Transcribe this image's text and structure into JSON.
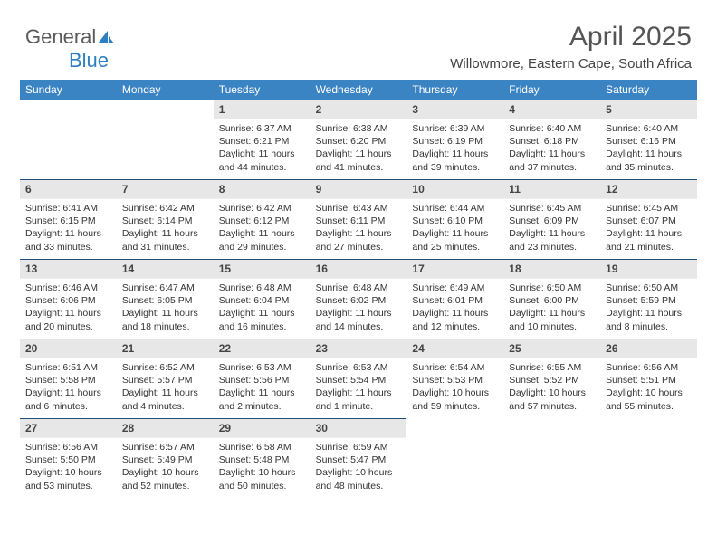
{
  "logo": {
    "text_gray": "General",
    "text_blue": "Blue"
  },
  "title": "April 2025",
  "location": "Willowmore, Eastern Cape, South Africa",
  "colors": {
    "header_bg": "#3b84c4",
    "header_text": "#ffffff",
    "daynum_bg": "#e7e7e7",
    "daynum_border_top": "#1f4e79",
    "body_text": "#333333",
    "title_text": "#555555",
    "logo_gray": "#5a5a5a",
    "logo_blue": "#2d7fc1",
    "background": "#ffffff"
  },
  "typography": {
    "title_fontsize": 30,
    "location_fontsize": 15,
    "dayhead_fontsize": 12,
    "daynum_fontsize": 12,
    "cell_fontsize": 10.5,
    "logo_fontsize": 22
  },
  "day_headers": [
    "Sunday",
    "Monday",
    "Tuesday",
    "Wednesday",
    "Thursday",
    "Friday",
    "Saturday"
  ],
  "weeks": [
    [
      {
        "empty": true
      },
      {
        "empty": true
      },
      {
        "day": "1",
        "sunrise": "Sunrise: 6:37 AM",
        "sunset": "Sunset: 6:21 PM",
        "daylight": "Daylight: 11 hours and 44 minutes."
      },
      {
        "day": "2",
        "sunrise": "Sunrise: 6:38 AM",
        "sunset": "Sunset: 6:20 PM",
        "daylight": "Daylight: 11 hours and 41 minutes."
      },
      {
        "day": "3",
        "sunrise": "Sunrise: 6:39 AM",
        "sunset": "Sunset: 6:19 PM",
        "daylight": "Daylight: 11 hours and 39 minutes."
      },
      {
        "day": "4",
        "sunrise": "Sunrise: 6:40 AM",
        "sunset": "Sunset: 6:18 PM",
        "daylight": "Daylight: 11 hours and 37 minutes."
      },
      {
        "day": "5",
        "sunrise": "Sunrise: 6:40 AM",
        "sunset": "Sunset: 6:16 PM",
        "daylight": "Daylight: 11 hours and 35 minutes."
      }
    ],
    [
      {
        "day": "6",
        "sunrise": "Sunrise: 6:41 AM",
        "sunset": "Sunset: 6:15 PM",
        "daylight": "Daylight: 11 hours and 33 minutes."
      },
      {
        "day": "7",
        "sunrise": "Sunrise: 6:42 AM",
        "sunset": "Sunset: 6:14 PM",
        "daylight": "Daylight: 11 hours and 31 minutes."
      },
      {
        "day": "8",
        "sunrise": "Sunrise: 6:42 AM",
        "sunset": "Sunset: 6:12 PM",
        "daylight": "Daylight: 11 hours and 29 minutes."
      },
      {
        "day": "9",
        "sunrise": "Sunrise: 6:43 AM",
        "sunset": "Sunset: 6:11 PM",
        "daylight": "Daylight: 11 hours and 27 minutes."
      },
      {
        "day": "10",
        "sunrise": "Sunrise: 6:44 AM",
        "sunset": "Sunset: 6:10 PM",
        "daylight": "Daylight: 11 hours and 25 minutes."
      },
      {
        "day": "11",
        "sunrise": "Sunrise: 6:45 AM",
        "sunset": "Sunset: 6:09 PM",
        "daylight": "Daylight: 11 hours and 23 minutes."
      },
      {
        "day": "12",
        "sunrise": "Sunrise: 6:45 AM",
        "sunset": "Sunset: 6:07 PM",
        "daylight": "Daylight: 11 hours and 21 minutes."
      }
    ],
    [
      {
        "day": "13",
        "sunrise": "Sunrise: 6:46 AM",
        "sunset": "Sunset: 6:06 PM",
        "daylight": "Daylight: 11 hours and 20 minutes."
      },
      {
        "day": "14",
        "sunrise": "Sunrise: 6:47 AM",
        "sunset": "Sunset: 6:05 PM",
        "daylight": "Daylight: 11 hours and 18 minutes."
      },
      {
        "day": "15",
        "sunrise": "Sunrise: 6:48 AM",
        "sunset": "Sunset: 6:04 PM",
        "daylight": "Daylight: 11 hours and 16 minutes."
      },
      {
        "day": "16",
        "sunrise": "Sunrise: 6:48 AM",
        "sunset": "Sunset: 6:02 PM",
        "daylight": "Daylight: 11 hours and 14 minutes."
      },
      {
        "day": "17",
        "sunrise": "Sunrise: 6:49 AM",
        "sunset": "Sunset: 6:01 PM",
        "daylight": "Daylight: 11 hours and 12 minutes."
      },
      {
        "day": "18",
        "sunrise": "Sunrise: 6:50 AM",
        "sunset": "Sunset: 6:00 PM",
        "daylight": "Daylight: 11 hours and 10 minutes."
      },
      {
        "day": "19",
        "sunrise": "Sunrise: 6:50 AM",
        "sunset": "Sunset: 5:59 PM",
        "daylight": "Daylight: 11 hours and 8 minutes."
      }
    ],
    [
      {
        "day": "20",
        "sunrise": "Sunrise: 6:51 AM",
        "sunset": "Sunset: 5:58 PM",
        "daylight": "Daylight: 11 hours and 6 minutes."
      },
      {
        "day": "21",
        "sunrise": "Sunrise: 6:52 AM",
        "sunset": "Sunset: 5:57 PM",
        "daylight": "Daylight: 11 hours and 4 minutes."
      },
      {
        "day": "22",
        "sunrise": "Sunrise: 6:53 AM",
        "sunset": "Sunset: 5:56 PM",
        "daylight": "Daylight: 11 hours and 2 minutes."
      },
      {
        "day": "23",
        "sunrise": "Sunrise: 6:53 AM",
        "sunset": "Sunset: 5:54 PM",
        "daylight": "Daylight: 11 hours and 1 minute."
      },
      {
        "day": "24",
        "sunrise": "Sunrise: 6:54 AM",
        "sunset": "Sunset: 5:53 PM",
        "daylight": "Daylight: 10 hours and 59 minutes."
      },
      {
        "day": "25",
        "sunrise": "Sunrise: 6:55 AM",
        "sunset": "Sunset: 5:52 PM",
        "daylight": "Daylight: 10 hours and 57 minutes."
      },
      {
        "day": "26",
        "sunrise": "Sunrise: 6:56 AM",
        "sunset": "Sunset: 5:51 PM",
        "daylight": "Daylight: 10 hours and 55 minutes."
      }
    ],
    [
      {
        "day": "27",
        "sunrise": "Sunrise: 6:56 AM",
        "sunset": "Sunset: 5:50 PM",
        "daylight": "Daylight: 10 hours and 53 minutes."
      },
      {
        "day": "28",
        "sunrise": "Sunrise: 6:57 AM",
        "sunset": "Sunset: 5:49 PM",
        "daylight": "Daylight: 10 hours and 52 minutes."
      },
      {
        "day": "29",
        "sunrise": "Sunrise: 6:58 AM",
        "sunset": "Sunset: 5:48 PM",
        "daylight": "Daylight: 10 hours and 50 minutes."
      },
      {
        "day": "30",
        "sunrise": "Sunrise: 6:59 AM",
        "sunset": "Sunset: 5:47 PM",
        "daylight": "Daylight: 10 hours and 48 minutes."
      },
      {
        "empty": true
      },
      {
        "empty": true
      },
      {
        "empty": true
      }
    ]
  ]
}
